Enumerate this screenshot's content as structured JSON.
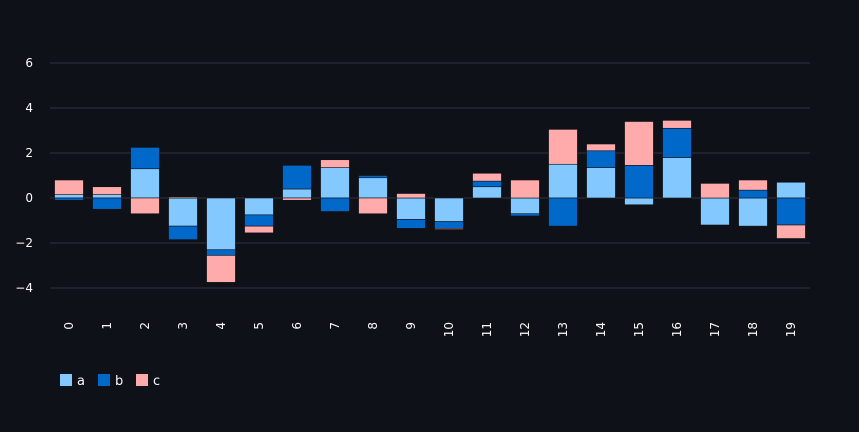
{
  "chart_data": {
    "type": "bar",
    "stacked": true,
    "categories": [
      "0",
      "1",
      "2",
      "3",
      "4",
      "5",
      "6",
      "7",
      "8",
      "9",
      "10",
      "11",
      "12",
      "13",
      "14",
      "15",
      "16",
      "17",
      "18",
      "19"
    ],
    "series": [
      {
        "name": "a",
        "color": "#83c9ff",
        "values": [
          0.15,
          0.15,
          1.3,
          -1.25,
          -2.3,
          -0.75,
          0.4,
          1.35,
          0.9,
          -0.95,
          -1.05,
          0.5,
          -0.7,
          1.5,
          1.35,
          -0.3,
          1.8,
          -1.2,
          -1.25,
          0.7
        ]
      },
      {
        "name": "b",
        "color": "#0068c9",
        "values": [
          -0.1,
          -0.5,
          0.95,
          -0.6,
          -0.25,
          -0.5,
          1.05,
          -0.6,
          0.1,
          -0.4,
          -0.3,
          0.25,
          -0.1,
          -1.25,
          0.75,
          1.45,
          1.3,
          0.0,
          0.35,
          -1.2
        ]
      },
      {
        "name": "c",
        "color": "#ffabab",
        "values": [
          0.65,
          0.35,
          -0.7,
          0.05,
          -1.2,
          -0.3,
          -0.1,
          0.35,
          -0.7,
          0.2,
          -0.05,
          0.35,
          0.8,
          1.55,
          0.3,
          1.95,
          0.35,
          0.65,
          0.45,
          -0.6
        ]
      }
    ],
    "yticks": [
      -4,
      -2,
      0,
      2,
      4,
      6
    ],
    "ylim": [
      -4.8,
      6.2
    ],
    "grid": true,
    "legend_position": "bottom-left"
  }
}
